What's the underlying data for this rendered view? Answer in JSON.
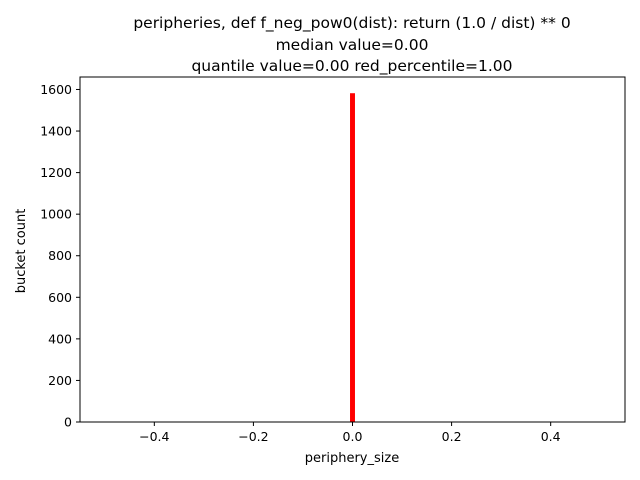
{
  "chart_data": {
    "type": "bar",
    "title_lines": [
      "peripheries, def f_neg_pow0(dist): return (1.0 / dist) ** 0",
      "median value=0.00",
      "quantile value=0.00  red_percentile=1.00"
    ],
    "xlabel": "periphery_size",
    "ylabel": "bucket count",
    "xlim": [
      -0.55,
      0.55
    ],
    "ylim": [
      0,
      1660
    ],
    "x_ticks": [
      -0.4,
      -0.2,
      0.0,
      0.2,
      0.4
    ],
    "x_tick_labels": [
      "−0.4",
      "−0.2",
      "0.0",
      "0.2",
      "0.4"
    ],
    "y_ticks": [
      0,
      200,
      400,
      600,
      800,
      1000,
      1200,
      1400,
      1600
    ],
    "y_tick_labels": [
      "0",
      "200",
      "400",
      "600",
      "800",
      "1000",
      "1200",
      "1400",
      "1600"
    ],
    "bars": [
      {
        "x": 0.0,
        "width": 0.01,
        "value": 1582,
        "color": "#ff0000"
      }
    ],
    "grid": false,
    "legend": "none"
  }
}
